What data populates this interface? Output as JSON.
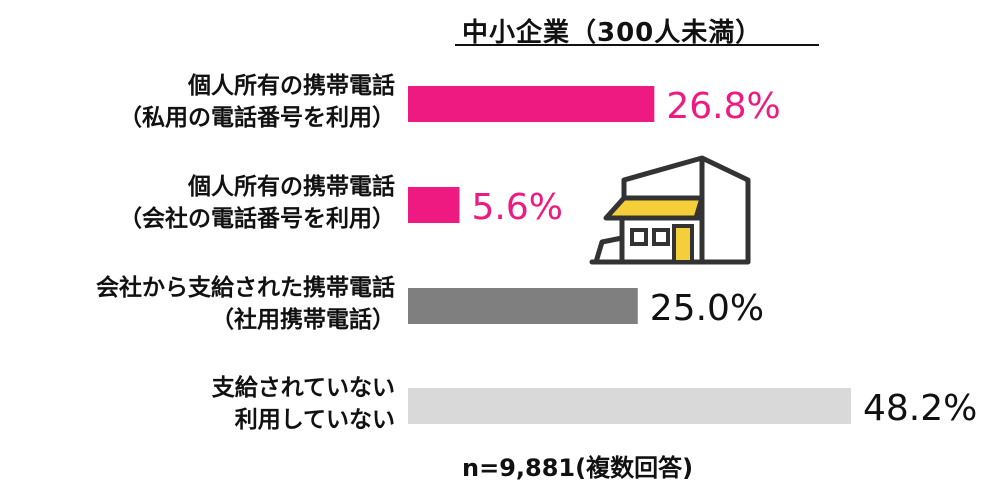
{
  "chart_data": {
    "type": "bar",
    "orientation": "horizontal",
    "title": "中小企業（300人未満）",
    "categories": [
      [
        "個人所有の携帯電話",
        "（私用の電話番号を利用）"
      ],
      [
        "個人所有の携帯電話",
        "（会社の電話番号を利用）"
      ],
      [
        "会社から支給された携帯電話",
        "（社用携帯電話）"
      ],
      [
        "支給されていない",
        "利用していない"
      ]
    ],
    "values": [
      26.8,
      5.6,
      25.0,
      48.2
    ],
    "value_labels": [
      "26.8%",
      "5.6%",
      "25.0%",
      "48.2%"
    ],
    "colors": [
      "#ee1a82",
      "#ee1a82",
      "#7f7f7f",
      "#d9d9d9"
    ],
    "label_colors": [
      "#ee1a82",
      "#ee1a82",
      "#111111",
      "#111111"
    ],
    "xlim": [
      0,
      48.2
    ],
    "grid": false,
    "note": "n=9,881(複数回答)",
    "icon": "building-icon"
  }
}
